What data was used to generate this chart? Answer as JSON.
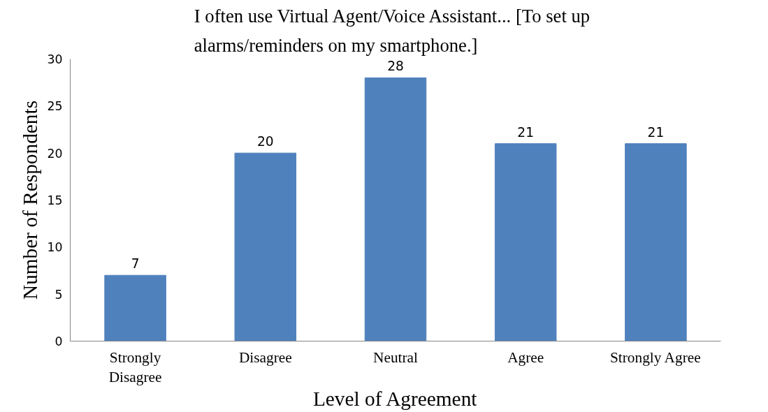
{
  "chart_data": {
    "type": "bar",
    "title": "I often use Virtual Agent/Voice Assistant...  [To set up alarms/reminders on my smartphone.]",
    "xlabel": "Level of Agreement",
    "ylabel": "Number of Respondents",
    "categories": [
      "Strongly Disagree",
      "Disagree",
      "Neutral",
      "Agree",
      "Strongly Agree"
    ],
    "values": [
      7,
      20,
      28,
      21,
      21
    ],
    "color": "#4f81bd",
    "ylim": [
      0,
      30
    ],
    "yticks": [
      0,
      5,
      10,
      15,
      20,
      25,
      30
    ],
    "grid": false,
    "data_labels": true
  }
}
